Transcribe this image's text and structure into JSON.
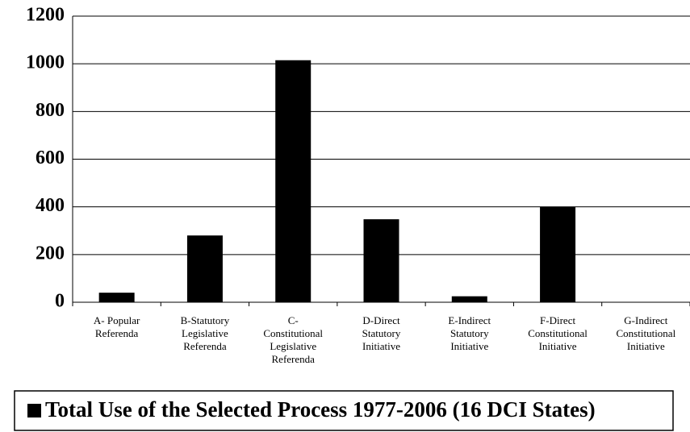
{
  "chart_data": {
    "type": "bar",
    "categories": [
      [
        "A- Popular",
        "Referenda"
      ],
      [
        "B-Statutory",
        "Legislative",
        "Referenda"
      ],
      [
        "C-",
        "Constitutional",
        "Legislative",
        "Referenda"
      ],
      [
        "D-Direct",
        "Statutory",
        "Initiative"
      ],
      [
        "E-Indirect",
        "Statutory",
        "Initiative"
      ],
      [
        "F-Direct",
        "Constitutional",
        "Initiative"
      ],
      [
        "G-Indirect",
        "Constitutional",
        "Initiative"
      ]
    ],
    "series": [
      {
        "name": "Total Use of the Selected Process 1977-2006 (16 DCI States)",
        "color": "#000000",
        "values": [
          40,
          280,
          1015,
          348,
          25,
          400,
          0
        ]
      }
    ],
    "ylim": [
      0,
      1200
    ],
    "yticks": [
      0,
      200,
      400,
      600,
      800,
      1000,
      1200
    ],
    "grid": true,
    "legend": "bottom"
  }
}
